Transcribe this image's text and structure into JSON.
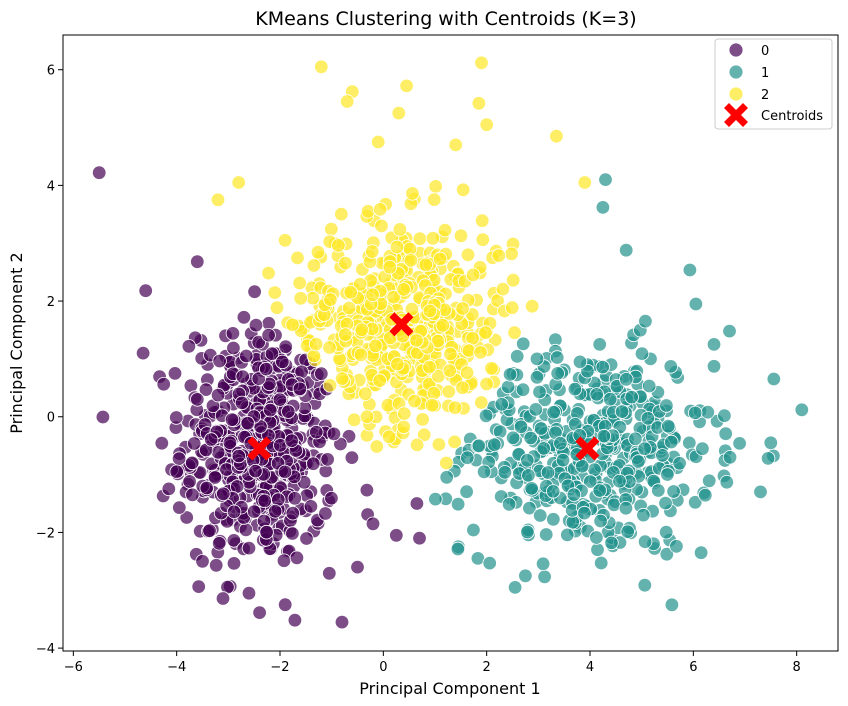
{
  "chart_data": {
    "type": "scatter",
    "title": "KMeans Clustering with Centroids (K=3)",
    "xlabel": "Principal Component 1",
    "ylabel": "Principal Component 2",
    "xlim": [
      -6.2,
      8.8
    ],
    "ylim": [
      -4.05,
      6.6
    ],
    "xticks": [
      -6,
      -4,
      -2,
      0,
      2,
      4,
      6,
      8
    ],
    "xtick_labels": [
      "−6",
      "−4",
      "−2",
      "0",
      "2",
      "4",
      "6",
      "8"
    ],
    "yticks": [
      -4,
      -2,
      0,
      2,
      4,
      6
    ],
    "ytick_labels": [
      "−4",
      "−2",
      "0",
      "2",
      "4",
      "6"
    ],
    "grid": false,
    "legend_position": "top-right",
    "series": [
      {
        "name": "0",
        "color": "#440154",
        "center": [
          -2.4,
          -0.5
        ],
        "spread": [
          0.75,
          1.05
        ],
        "count": 520,
        "outliers": [
          [
            -5.5,
            4.22
          ],
          [
            -4.6,
            2.18
          ],
          [
            -4.65,
            1.1
          ],
          [
            -3.5,
            -2.5
          ],
          [
            -4.0,
            -0.95
          ],
          [
            -3.75,
            -1.12
          ],
          [
            -0.8,
            -3.55
          ],
          [
            -1.9,
            -3.25
          ],
          [
            -2.6,
            -3.05
          ],
          [
            -3.6,
            2.68
          ],
          [
            -0.2,
            -1.85
          ],
          [
            0.65,
            -1.5
          ],
          [
            0.25,
            -2.05
          ],
          [
            -0.5,
            -2.6
          ],
          [
            0.7,
            -2.1
          ]
        ]
      },
      {
        "name": "1",
        "color": "#21918c",
        "center": [
          3.95,
          -0.55
        ],
        "spread": [
          1.2,
          0.9
        ],
        "count": 470,
        "outliers": [
          [
            8.1,
            0.12
          ],
          [
            7.5,
            -0.45
          ],
          [
            6.7,
            1.48
          ],
          [
            6.05,
            1.95
          ],
          [
            4.3,
            4.1
          ],
          [
            4.25,
            3.62
          ],
          [
            4.7,
            2.88
          ],
          [
            2.55,
            -2.95
          ],
          [
            2.75,
            -2.75
          ],
          [
            6.15,
            -2.35
          ],
          [
            7.3,
            -1.3
          ],
          [
            6.4,
            1.25
          ]
        ]
      },
      {
        "name": "2",
        "color": "#fde725",
        "center": [
          0.35,
          1.6
        ],
        "spread": [
          1.1,
          0.9
        ],
        "count": 500,
        "outliers": [
          [
            -1.2,
            6.05
          ],
          [
            -0.6,
            5.62
          ],
          [
            0.45,
            5.72
          ],
          [
            1.9,
            6.12
          ],
          [
            1.85,
            5.42
          ],
          [
            2.0,
            5.05
          ],
          [
            3.35,
            4.85
          ],
          [
            -0.7,
            5.45
          ],
          [
            0.3,
            5.25
          ],
          [
            1.4,
            4.7
          ],
          [
            -3.2,
            3.75
          ],
          [
            -2.8,
            4.05
          ],
          [
            3.9,
            4.05
          ],
          [
            -0.1,
            4.75
          ]
        ]
      }
    ],
    "centroids": {
      "name": "Centroids",
      "color": "#ff0000",
      "points": [
        [
          -2.4,
          -0.55
        ],
        [
          3.95,
          -0.55
        ],
        [
          0.35,
          1.6
        ]
      ]
    }
  }
}
